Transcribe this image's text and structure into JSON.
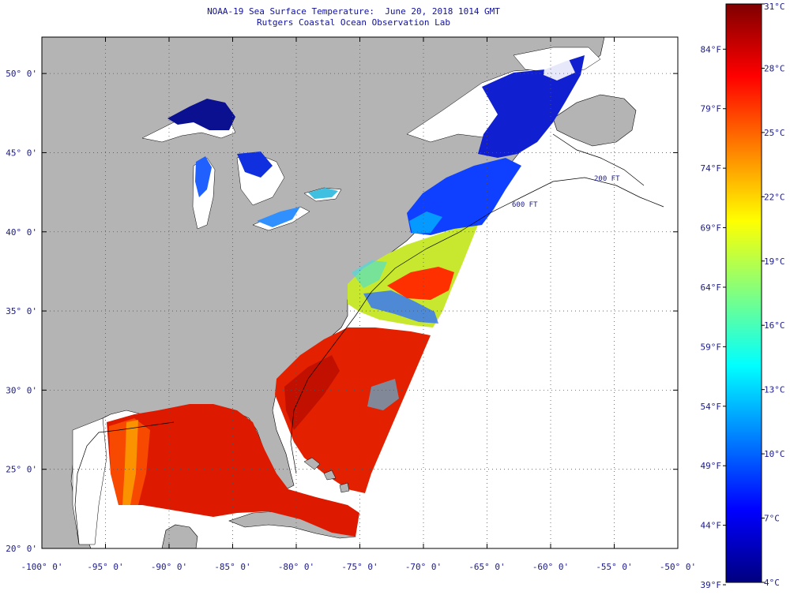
{
  "title": {
    "line1": "NOAA-19 Sea Surface Temperature:  June 20, 2018 1014 GMT",
    "line2": "Rutgers Coastal Ocean Observation Lab"
  },
  "map": {
    "lon_range": [
      -100,
      -50
    ],
    "lat_range": [
      20,
      52.3
    ],
    "lon_ticks": [
      {
        "value": -100,
        "label": "-100° 0'"
      },
      {
        "value": -95,
        "label": "-95° 0'"
      },
      {
        "value": -90,
        "label": "-90° 0'"
      },
      {
        "value": -85,
        "label": "-85° 0'"
      },
      {
        "value": -80,
        "label": "-80° 0'"
      },
      {
        "value": -75,
        "label": "-75° 0'"
      },
      {
        "value": -70,
        "label": "-70° 0'"
      },
      {
        "value": -65,
        "label": "-65° 0'"
      },
      {
        "value": -60,
        "label": "-60° 0'"
      },
      {
        "value": -55,
        "label": "-55° 0'"
      },
      {
        "value": -50,
        "label": "-50° 0'"
      }
    ],
    "lat_ticks": [
      {
        "value": 20,
        "label": "20° 0'"
      },
      {
        "value": 25,
        "label": "25° 0'"
      },
      {
        "value": 30,
        "label": "30° 0'"
      },
      {
        "value": 35,
        "label": "35° 0'"
      },
      {
        "value": 40,
        "label": "40° 0'"
      },
      {
        "value": 45,
        "label": "45° 0'"
      },
      {
        "value": 50,
        "label": "50° 0'"
      }
    ],
    "contour_labels": [
      "200 FT",
      "600 FT"
    ],
    "colors": {
      "land": "#b4b4b4",
      "ocean_nodata": "#ffffff",
      "grid": "#555555"
    }
  },
  "colorbar": {
    "min_c": 4,
    "max_c": 31,
    "celsius_labels": [
      {
        "value": 31,
        "label": "31°C"
      },
      {
        "value": 28,
        "label": "28°C"
      },
      {
        "value": 25,
        "label": "25°C"
      },
      {
        "value": 22,
        "label": "22°C"
      },
      {
        "value": 19,
        "label": "19°C"
      },
      {
        "value": 16,
        "label": "16°C"
      },
      {
        "value": 13,
        "label": "13°C"
      },
      {
        "value": 10,
        "label": "10°C"
      },
      {
        "value": 7,
        "label": "7°C"
      },
      {
        "value": 4,
        "label": "4°C"
      }
    ],
    "fahrenheit_labels": [
      {
        "value": 84,
        "label": "84°F"
      },
      {
        "value": 79,
        "label": "79°F"
      },
      {
        "value": 74,
        "label": "74°F"
      },
      {
        "value": 69,
        "label": "69°F"
      },
      {
        "value": 64,
        "label": "64°F"
      },
      {
        "value": 59,
        "label": "59°F"
      },
      {
        "value": 54,
        "label": "54°F"
      },
      {
        "value": 49,
        "label": "49°F"
      },
      {
        "value": 44,
        "label": "44°F"
      },
      {
        "value": 39,
        "label": "39°F"
      }
    ],
    "stops": [
      "#00007f",
      "#0000ff",
      "#0080ff",
      "#00ffff",
      "#80ff80",
      "#ffff00",
      "#ff8000",
      "#ff0000",
      "#7f0000"
    ]
  }
}
